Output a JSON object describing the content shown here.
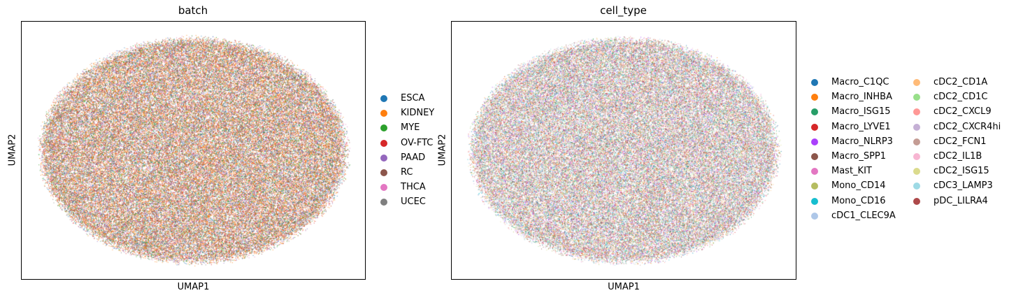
{
  "chart_data": [
    {
      "type": "scatter",
      "title": "batch",
      "xlabel": "UMAP1",
      "ylabel": "UMAP2",
      "ticks": "none",
      "legend_placement": "right",
      "categories": [
        {
          "name": "ESCA",
          "color": "#1f77b4",
          "weight": 1.0
        },
        {
          "name": "KIDNEY",
          "color": "#ff7f0e",
          "weight": 3.2
        },
        {
          "name": "MYE",
          "color": "#2ca02c",
          "weight": 1.2
        },
        {
          "name": "OV-FTC",
          "color": "#d62728",
          "weight": 1.0
        },
        {
          "name": "PAAD",
          "color": "#9467bd",
          "weight": 0.9
        },
        {
          "name": "RC",
          "color": "#8c564b",
          "weight": 1.0
        },
        {
          "name": "THCA",
          "color": "#e377c2",
          "weight": 0.8
        },
        {
          "name": "UCEC",
          "color": "#7f7f7f",
          "weight": 1.0
        }
      ]
    },
    {
      "type": "scatter",
      "title": "cell_type",
      "xlabel": "UMAP1",
      "ylabel": "UMAP2",
      "ticks": "none",
      "legend_placement": "right",
      "legend_columns": 2,
      "categories": [
        {
          "name": "Macro_C1QC",
          "color": "#1f77b4",
          "weight": 1.0
        },
        {
          "name": "Macro_INHBA",
          "color": "#ff7f0e",
          "weight": 1.0
        },
        {
          "name": "Macro_ISG15",
          "color": "#279e68",
          "weight": 1.0
        },
        {
          "name": "Macro_LYVE1",
          "color": "#d62728",
          "weight": 1.0
        },
        {
          "name": "Macro_NLRP3",
          "color": "#aa40fc",
          "weight": 1.0
        },
        {
          "name": "Macro_SPP1",
          "color": "#8c564b",
          "weight": 1.0
        },
        {
          "name": "Mast_KIT",
          "color": "#e377c2",
          "weight": 1.0
        },
        {
          "name": "Mono_CD14",
          "color": "#b5bd61",
          "weight": 1.0
        },
        {
          "name": "Mono_CD16",
          "color": "#17becf",
          "weight": 1.0
        },
        {
          "name": "cDC1_CLEC9A",
          "color": "#aec7e8",
          "weight": 1.0
        },
        {
          "name": "cDC2_CD1A",
          "color": "#ffbb78",
          "weight": 1.0
        },
        {
          "name": "cDC2_CD1C",
          "color": "#98df8a",
          "weight": 1.0
        },
        {
          "name": "cDC2_CXCL9",
          "color": "#ff9896",
          "weight": 1.0
        },
        {
          "name": "cDC2_CXCR4hi",
          "color": "#c5b0d5",
          "weight": 1.0
        },
        {
          "name": "cDC2_FCN1",
          "color": "#c49c94",
          "weight": 1.0
        },
        {
          "name": "cDC2_IL1B",
          "color": "#f7b6d2",
          "weight": 1.0
        },
        {
          "name": "cDC2_ISG15",
          "color": "#dbdb8d",
          "weight": 1.0
        },
        {
          "name": "cDC3_LAMP3",
          "color": "#9edae5",
          "weight": 1.0
        },
        {
          "name": "pDC_LILRA4",
          "color": "#ad494a",
          "weight": 1.0
        }
      ]
    }
  ]
}
